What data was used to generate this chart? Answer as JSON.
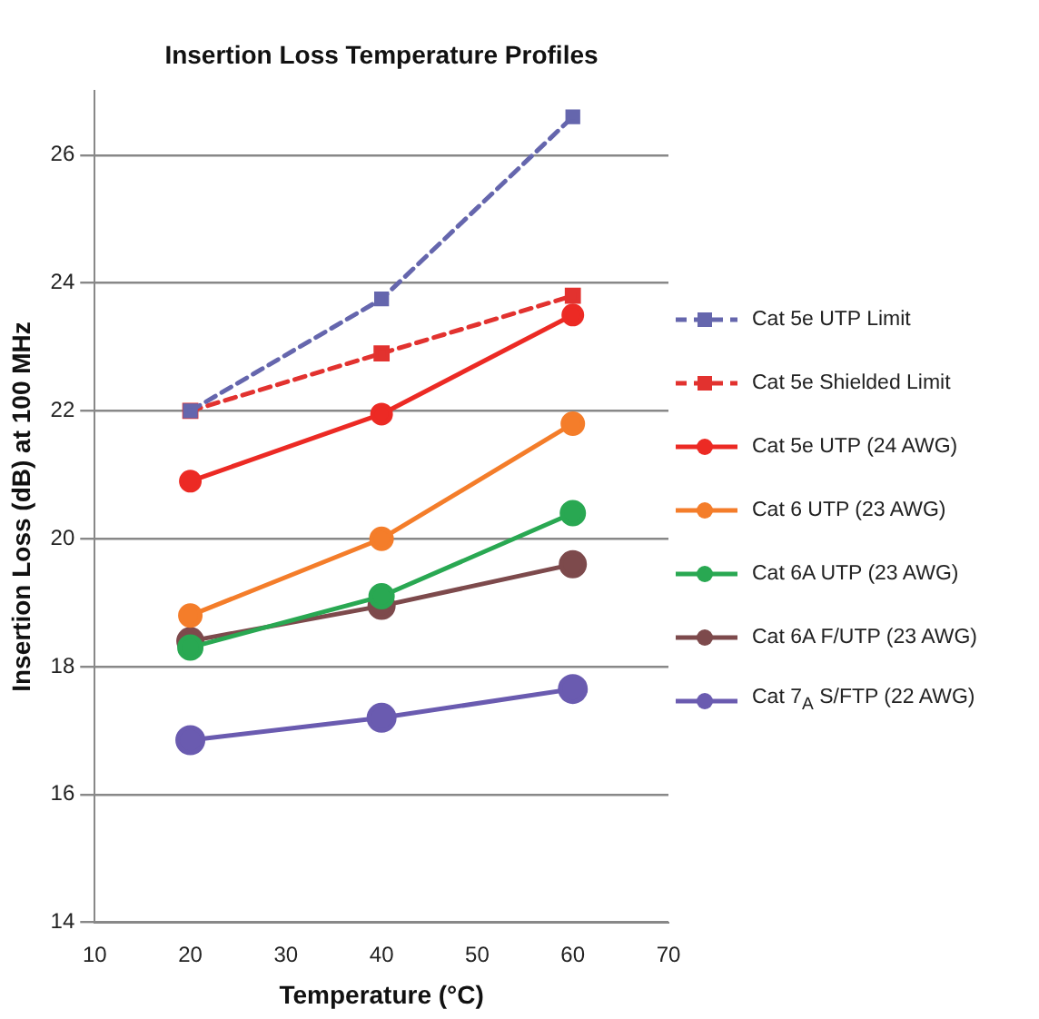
{
  "chart_data": {
    "type": "line",
    "title": "Insertion Loss Temperature Profiles",
    "xlabel": "Temperature (°C)",
    "ylabel": "Insertion Loss (dB) at 100 MHz",
    "x": [
      20,
      40,
      60
    ],
    "xlim": [
      10,
      70
    ],
    "xticks": [
      10,
      20,
      30,
      40,
      50,
      60,
      70
    ],
    "ylim": [
      14,
      27
    ],
    "yticks": [
      14,
      16,
      18,
      20,
      22,
      24,
      26
    ],
    "grid": "y",
    "legend": "right",
    "series": [
      {
        "name": "Cat 5e UTP Limit",
        "color": "#6566ad",
        "values": [
          22.0,
          23.75,
          26.6
        ],
        "line_style": "dashed",
        "marker": "square"
      },
      {
        "name": "Cat 5e Shielded Limit",
        "color": "#e2322f",
        "values": [
          22.0,
          22.9,
          23.8
        ],
        "line_style": "dashed",
        "marker": "square"
      },
      {
        "name": "Cat 5e UTP (24 AWG)",
        "color": "#ec2a24",
        "values": [
          20.9,
          21.95,
          23.5
        ],
        "line_style": "solid",
        "marker": "circle"
      },
      {
        "name": "Cat 6 UTP (23 AWG)",
        "color": "#f47d2a",
        "values": [
          18.8,
          20.0,
          21.8
        ],
        "line_style": "solid",
        "marker": "circle"
      },
      {
        "name": "Cat 6A UTP (23 AWG)",
        "color": "#29a852",
        "values": [
          18.3,
          19.1,
          20.4
        ],
        "line_style": "solid",
        "marker": "circle"
      },
      {
        "name": "Cat 6A F/UTP (23 AWG)",
        "color": "#7d4a4c",
        "values": [
          18.4,
          18.95,
          19.6
        ],
        "line_style": "solid",
        "marker": "circle"
      },
      {
        "name": "Cat 7$_{A}$ S/FTP (22 AWG)",
        "color": "#6a5bb0",
        "values": [
          16.85,
          17.2,
          17.65
        ],
        "line_style": "solid",
        "marker": "circle"
      }
    ]
  }
}
